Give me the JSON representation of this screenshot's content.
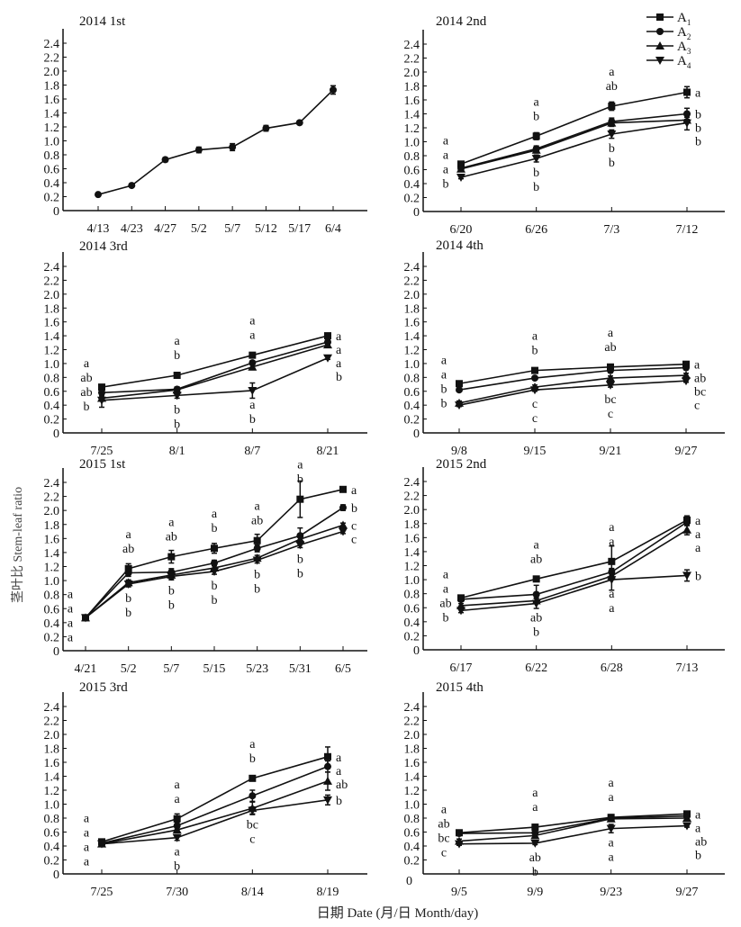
{
  "figure": {
    "ylabel": "茎叶比 Stem-leaf ratio",
    "xlabel": "日期 Date (月/日 Month/day)",
    "legend": {
      "position": "top-right",
      "items": [
        {
          "label": "A",
          "sub": "1",
          "marker": "square"
        },
        {
          "label": "A",
          "sub": "2",
          "marker": "circle"
        },
        {
          "label": "A",
          "sub": "3",
          "marker": "triangle-up"
        },
        {
          "label": "A",
          "sub": "4",
          "marker": "triangle-down"
        }
      ]
    }
  },
  "chart_data": [
    {
      "type": "line",
      "title": "2014 1st",
      "ylim": [
        0,
        2.4
      ],
      "yticks": [
        "0",
        "0.2",
        "0.4",
        "0.6",
        "0.8",
        "1.0",
        "1.2",
        "1.4",
        "1.6",
        "1.8",
        "2.0",
        "2.2",
        "2.4"
      ],
      "categories": [
        "4/13",
        "4/23",
        "4/27",
        "5/2",
        "5/7",
        "5/12",
        "5/17",
        "6/4"
      ],
      "series": [
        {
          "name": "mean",
          "marker": "circle",
          "values": [
            0.23,
            0.36,
            0.73,
            0.87,
            0.91,
            1.18,
            1.26,
            1.73
          ],
          "err": [
            0.02,
            0.02,
            0.03,
            0.04,
            0.05,
            0.04,
            0.02,
            0.06
          ]
        }
      ],
      "letters": []
    },
    {
      "type": "line",
      "title": "2014 2nd",
      "ylim": [
        0,
        2.4
      ],
      "yticks": [
        "0",
        "0.2",
        "0.4",
        "0.6",
        "0.8",
        "1.0",
        "1.2",
        "1.4",
        "1.6",
        "1.8",
        "2.0",
        "2.2",
        "2.4"
      ],
      "categories": [
        "6/20",
        "6/26",
        "7/3",
        "7/12"
      ],
      "series": [
        {
          "name": "A1",
          "marker": "square",
          "values": [
            0.68,
            1.08,
            1.51,
            1.71
          ],
          "err": [
            0.03,
            0.05,
            0.06,
            0.08
          ]
        },
        {
          "name": "A2",
          "marker": "circle",
          "values": [
            0.62,
            0.9,
            1.29,
            1.4
          ],
          "err": [
            0.03,
            0.04,
            0.05,
            0.08
          ]
        },
        {
          "name": "A3",
          "marker": "triangle-up",
          "values": [
            0.61,
            0.88,
            1.27,
            1.31
          ],
          "err": [
            0.03,
            0.04,
            0.05,
            0.04
          ]
        },
        {
          "name": "A4",
          "marker": "triangle-down",
          "values": [
            0.49,
            0.76,
            1.11,
            1.27
          ],
          "err": [
            0.02,
            0.05,
            0.06,
            0.1
          ]
        }
      ],
      "letters": [
        [
          "a",
          "a",
          "a",
          "b"
        ],
        [
          "a",
          "b",
          "b",
          "b"
        ],
        [
          "a",
          "ab",
          "b",
          "b"
        ],
        [
          "a",
          "b",
          "b",
          "b"
        ]
      ],
      "letter_side": [
        "left",
        "center",
        "center",
        "right"
      ]
    },
    {
      "type": "line",
      "title": "2014 3rd",
      "ylim": [
        0,
        2.4
      ],
      "yticks": [
        "0",
        "0.2",
        "0.4",
        "0.6",
        "0.8",
        "1.0",
        "1.2",
        "1.4",
        "1.6",
        "1.8",
        "2.0",
        "2.2",
        "2.4"
      ],
      "categories": [
        "7/25",
        "8/1",
        "8/7",
        "8/21"
      ],
      "series": [
        {
          "name": "A1",
          "marker": "square",
          "values": [
            0.66,
            0.83,
            1.12,
            1.4
          ],
          "err": [
            0.03,
            0.04,
            0.02,
            0.03
          ]
        },
        {
          "name": "A2",
          "marker": "circle",
          "values": [
            0.58,
            0.63,
            1.01,
            1.31
          ],
          "err": [
            0.03,
            0.03,
            0.03,
            0.03
          ]
        },
        {
          "name": "A3",
          "marker": "triangle-up",
          "values": [
            0.5,
            0.62,
            0.95,
            1.27
          ],
          "err": [
            0.03,
            0.04,
            0.04,
            0.03
          ]
        },
        {
          "name": "A4",
          "marker": "triangle-down",
          "values": [
            0.47,
            0.54,
            0.61,
            1.08
          ],
          "err": [
            0.1,
            0.04,
            0.11,
            0.02
          ]
        }
      ],
      "letters": [
        [
          "a",
          "ab",
          "ab",
          "b"
        ],
        [
          "a",
          "b",
          "b",
          "b"
        ],
        [
          "a",
          "a",
          "a",
          "b"
        ],
        [
          "a",
          "a",
          "a",
          "b"
        ]
      ],
      "letter_side": [
        "left",
        "center",
        "center",
        "right"
      ]
    },
    {
      "type": "line",
      "title": "2014 4th",
      "ylim": [
        0,
        2.4
      ],
      "yticks": [
        "0",
        "0.2",
        "0.4",
        "0.6",
        "0.8",
        "1.0",
        "1.2",
        "1.4",
        "1.6",
        "1.8",
        "2.0",
        "2.2",
        "2.4"
      ],
      "categories": [
        "9/8",
        "9/15",
        "9/21",
        "9/27"
      ],
      "series": [
        {
          "name": "A1",
          "marker": "square",
          "values": [
            0.71,
            0.9,
            0.95,
            0.99
          ],
          "err": [
            0.02,
            0.02,
            0.03,
            0.03
          ]
        },
        {
          "name": "A2",
          "marker": "circle",
          "values": [
            0.62,
            0.79,
            0.9,
            0.94
          ],
          "err": [
            0.02,
            0.02,
            0.03,
            0.03
          ]
        },
        {
          "name": "A3",
          "marker": "triangle-up",
          "values": [
            0.43,
            0.66,
            0.79,
            0.83
          ],
          "err": [
            0.03,
            0.03,
            0.03,
            0.03
          ]
        },
        {
          "name": "A4",
          "marker": "triangle-down",
          "values": [
            0.4,
            0.62,
            0.69,
            0.75
          ],
          "err": [
            0.02,
            0.02,
            0.03,
            0.02
          ]
        }
      ],
      "letters": [
        [
          "a",
          "a",
          "b",
          "b"
        ],
        [
          "a",
          "b",
          "c",
          "c"
        ],
        [
          "a",
          "ab",
          "bc",
          "c"
        ],
        [
          "a",
          "ab",
          "bc",
          "c"
        ]
      ],
      "letter_side": [
        "left",
        "center",
        "center",
        "right"
      ]
    },
    {
      "type": "line",
      "title": "2015 1st",
      "ylim": [
        0,
        2.4
      ],
      "yticks": [
        "0",
        "0.2",
        "0.4",
        "0.6",
        "0.8",
        "1.0",
        "1.2",
        "1.4",
        "1.6",
        "1.8",
        "2.0",
        "2.2",
        "2.4"
      ],
      "categories": [
        "4/21",
        "5/2",
        "5/7",
        "5/15",
        "5/23",
        "5/31",
        "6/5"
      ],
      "series": [
        {
          "name": "A1",
          "marker": "square",
          "values": [
            0.47,
            1.17,
            1.34,
            1.46,
            1.57,
            2.16,
            2.3
          ],
          "err": [
            0.02,
            0.07,
            0.09,
            0.07,
            0.09,
            0.26,
            0.03
          ]
        },
        {
          "name": "A2",
          "marker": "circle",
          "values": [
            0.47,
            1.11,
            1.12,
            1.25,
            1.46,
            1.64,
            2.04
          ],
          "err": [
            0.02,
            0.05,
            0.05,
            0.04,
            0.05,
            0.11,
            0.04
          ]
        },
        {
          "name": "A3",
          "marker": "triangle-up",
          "values": [
            0.47,
            0.97,
            1.08,
            1.18,
            1.32,
            1.59,
            1.79
          ],
          "err": [
            0.02,
            0.04,
            0.05,
            0.04,
            0.04,
            0.04,
            0.03
          ]
        },
        {
          "name": "A4",
          "marker": "triangle-down",
          "values": [
            0.47,
            0.95,
            1.06,
            1.13,
            1.29,
            1.51,
            1.7
          ],
          "err": [
            0.02,
            0.04,
            0.05,
            0.04,
            0.04,
            0.04,
            0.03
          ]
        }
      ],
      "letters": [
        [
          "a",
          "a",
          "a",
          "a"
        ],
        [
          "a",
          "ab",
          "b",
          "b"
        ],
        [
          "a",
          "ab",
          "b",
          "b"
        ],
        [
          "a",
          "b",
          "b",
          "b"
        ],
        [
          "a",
          "ab",
          "b",
          "b"
        ],
        [
          "a",
          "b",
          "b",
          "b"
        ],
        [
          "a",
          "b",
          "c",
          "c"
        ]
      ],
      "letter_side": [
        "left",
        "center",
        "center",
        "center",
        "center",
        "center",
        "right"
      ]
    },
    {
      "type": "line",
      "title": "2015 2nd",
      "ylim": [
        0,
        2.4
      ],
      "yticks": [
        "0",
        "0.2",
        "0.4",
        "0.6",
        "0.8",
        "1.0",
        "1.2",
        "1.4",
        "1.6",
        "1.8",
        "2.0",
        "2.2",
        "2.4"
      ],
      "categories": [
        "6/17",
        "6/22",
        "6/28",
        "7/13"
      ],
      "series": [
        {
          "name": "A1",
          "marker": "square",
          "values": [
            0.74,
            1.01,
            1.26,
            1.85
          ],
          "err": [
            0.03,
            0.02,
            0.22,
            0.06
          ]
        },
        {
          "name": "A2",
          "marker": "circle",
          "values": [
            0.72,
            0.79,
            1.11,
            1.82
          ],
          "err": [
            0.03,
            0.13,
            0.05,
            0.05
          ]
        },
        {
          "name": "A3",
          "marker": "triangle-up",
          "values": [
            0.63,
            0.7,
            1.05,
            1.71
          ],
          "err": [
            0.03,
            0.04,
            0.05,
            0.07
          ]
        },
        {
          "name": "A4",
          "marker": "triangle-down",
          "values": [
            0.56,
            0.66,
            1.0,
            1.06
          ],
          "err": [
            0.03,
            0.07,
            0.15,
            0.08
          ]
        }
      ],
      "letters": [
        [
          "a",
          "a",
          "ab",
          "b"
        ],
        [
          "a",
          "ab",
          "ab",
          "b"
        ],
        [
          "a",
          "a",
          "a",
          "a"
        ],
        [
          "a",
          "a",
          "a",
          "b"
        ]
      ],
      "letter_side": [
        "left",
        "center",
        "center",
        "right"
      ]
    },
    {
      "type": "line",
      "title": "2015 3rd",
      "ylim": [
        0,
        2.4
      ],
      "yticks": [
        "0",
        "0.2",
        "0.4",
        "0.6",
        "0.8",
        "1.0",
        "1.2",
        "1.4",
        "1.6",
        "1.8",
        "2.0",
        "2.2",
        "2.4"
      ],
      "categories": [
        "7/25",
        "7/30",
        "8/14",
        "8/19"
      ],
      "series": [
        {
          "name": "A1",
          "marker": "square",
          "values": [
            0.46,
            0.79,
            1.37,
            1.68
          ],
          "err": [
            0.02,
            0.07,
            0.02,
            0.14
          ]
        },
        {
          "name": "A2",
          "marker": "circle",
          "values": [
            0.44,
            0.69,
            1.12,
            1.54
          ],
          "err": [
            0.02,
            0.05,
            0.08,
            0.08
          ]
        },
        {
          "name": "A3",
          "marker": "triangle-up",
          "values": [
            0.43,
            0.63,
            0.94,
            1.33
          ],
          "err": [
            0.02,
            0.04,
            0.09,
            0.13
          ]
        },
        {
          "name": "A4",
          "marker": "triangle-down",
          "values": [
            0.43,
            0.52,
            0.91,
            1.06
          ],
          "err": [
            0.02,
            0.04,
            0.05,
            0.07
          ]
        }
      ],
      "letters": [
        [
          "a",
          "a",
          "a",
          "a"
        ],
        [
          "a",
          "a",
          "a",
          "b"
        ],
        [
          "a",
          "b",
          "bc",
          "c"
        ],
        [
          "a",
          "a",
          "ab",
          "b"
        ]
      ],
      "letter_side": [
        "left",
        "center",
        "center",
        "right"
      ]
    },
    {
      "type": "line",
      "title": "2015 4th",
      "ylim": [
        0,
        2.4
      ],
      "yticks": [
        "0.2",
        "0.4",
        "0.6",
        "0.8",
        "1.0",
        "1.2",
        "1.4",
        "1.6",
        "1.8",
        "2.0",
        "2.2",
        "2.4"
      ],
      "zero_label": "0",
      "categories": [
        "9/5",
        "9/9",
        "9/23",
        "9/27"
      ],
      "series": [
        {
          "name": "A1",
          "marker": "square",
          "values": [
            0.59,
            0.67,
            0.81,
            0.86
          ],
          "err": [
            0.03,
            0.04,
            0.04,
            0.03
          ]
        },
        {
          "name": "A2",
          "marker": "circle",
          "values": [
            0.58,
            0.59,
            0.8,
            0.83
          ],
          "err": [
            0.03,
            0.04,
            0.03,
            0.03
          ]
        },
        {
          "name": "A3",
          "marker": "triangle-up",
          "values": [
            0.47,
            0.55,
            0.79,
            0.8
          ],
          "err": [
            0.03,
            0.03,
            0.03,
            0.03
          ]
        },
        {
          "name": "A4",
          "marker": "triangle-down",
          "values": [
            0.43,
            0.44,
            0.65,
            0.69
          ],
          "err": [
            0.02,
            0.02,
            0.06,
            0.02
          ]
        }
      ],
      "letters": [
        [
          "a",
          "ab",
          "bc",
          "c"
        ],
        [
          "a",
          "a",
          "ab",
          "b"
        ],
        [
          "a",
          "a",
          "a",
          "a"
        ],
        [
          "a",
          "a",
          "ab",
          "b"
        ]
      ],
      "letter_side": [
        "left",
        "center",
        "center",
        "right"
      ]
    }
  ]
}
